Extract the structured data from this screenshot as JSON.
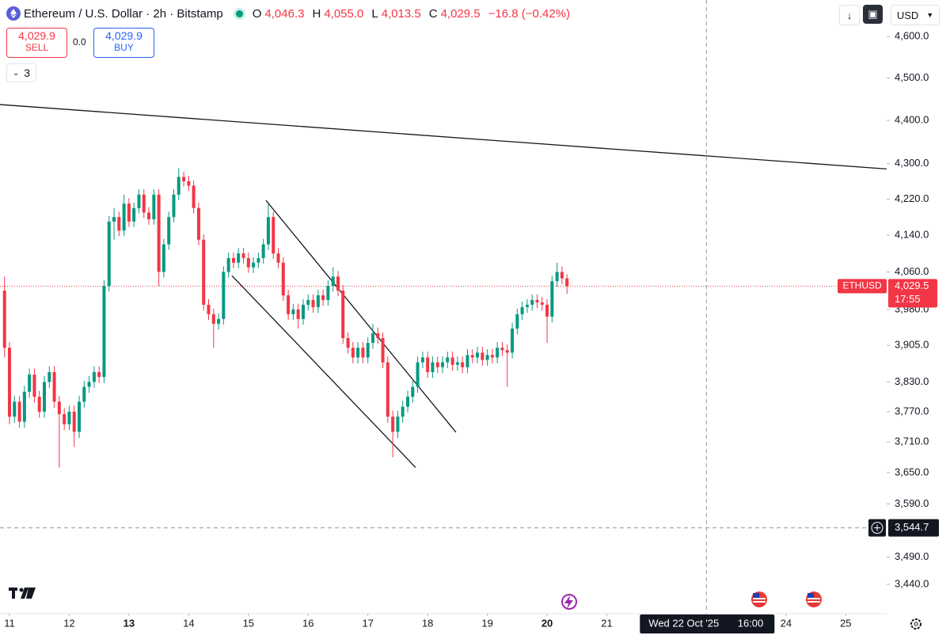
{
  "header": {
    "symbol": "Ethereum / U.S. Dollar · 2h · Bitstamp",
    "o_label": "O",
    "o": "4,046.3",
    "h_label": "H",
    "h": "4,055.0",
    "l_label": "L",
    "l": "4,013.5",
    "c_label": "C",
    "c": "4,029.5",
    "change": "−16.8 (−0.42%)"
  },
  "trade": {
    "sell_price": "4,029.9",
    "sell": "SELL",
    "spread": "0.0",
    "buy_price": "4,029.9",
    "buy": "BUY"
  },
  "indicators_count": "3",
  "currency": "USD",
  "chart_data": {
    "type": "candlestick",
    "log_scale": true,
    "up_color": "#089981",
    "down_color": "#f23645",
    "xlim": [
      10.841,
      25.685
    ],
    "xticks": [
      11,
      12,
      {
        "value": 13,
        "bold": true
      },
      14,
      15,
      16,
      17,
      18,
      19,
      {
        "value": 20,
        "bold": true
      },
      21,
      24,
      25
    ],
    "ylim": [
      3387,
      4690
    ],
    "yticks": [
      {
        "value": 4600,
        "label": "4,600.0"
      },
      {
        "value": 4500,
        "label": "4,500.0"
      },
      {
        "value": 4400,
        "label": "4,400.0"
      },
      {
        "value": 4300,
        "label": "4,300.0"
      },
      {
        "value": 4220,
        "label": "4,220.0"
      },
      {
        "value": 4140,
        "label": "4,140.0"
      },
      {
        "value": 4060,
        "label": "4,060.0"
      },
      {
        "value": 3980,
        "label": "3,980.0"
      },
      {
        "value": 3905,
        "label": "3,905.0"
      },
      {
        "value": 3830,
        "label": "3,830.0"
      },
      {
        "value": 3770,
        "label": "3,770.0"
      },
      {
        "value": 3710,
        "label": "3,710.0"
      },
      {
        "value": 3650,
        "label": "3,650.0"
      },
      {
        "value": 3590,
        "label": "3,590.0"
      },
      {
        "value": 3490,
        "label": "3,490.0"
      },
      {
        "value": 3440,
        "label": "3,440.0"
      }
    ],
    "x": [
      10.917,
      11.0,
      11.083,
      11.167,
      11.25,
      11.333,
      11.417,
      11.5,
      11.583,
      11.667,
      11.75,
      11.833,
      11.917,
      12.0,
      12.083,
      12.167,
      12.25,
      12.333,
      12.417,
      12.5,
      12.583,
      12.667,
      12.75,
      12.833,
      12.917,
      13.0,
      13.083,
      13.167,
      13.25,
      13.333,
      13.417,
      13.5,
      13.583,
      13.667,
      13.75,
      13.833,
      13.917,
      14.0,
      14.083,
      14.167,
      14.25,
      14.333,
      14.417,
      14.5,
      14.583,
      14.667,
      14.75,
      14.833,
      14.917,
      15.0,
      15.083,
      15.167,
      15.25,
      15.333,
      15.417,
      15.5,
      15.583,
      15.667,
      15.75,
      15.833,
      15.917,
      16.0,
      16.083,
      16.167,
      16.25,
      16.333,
      16.417,
      16.5,
      16.583,
      16.667,
      16.75,
      16.833,
      16.917,
      17.0,
      17.083,
      17.167,
      17.25,
      17.333,
      17.417,
      17.5,
      17.583,
      17.667,
      17.75,
      17.833,
      17.917,
      18.0,
      18.083,
      18.167,
      18.25,
      18.333,
      18.417,
      18.5,
      18.583,
      18.667,
      18.75,
      18.833,
      18.917,
      19.0,
      19.083,
      19.167,
      19.25,
      19.333,
      19.417,
      19.5,
      19.583,
      19.667,
      19.75,
      19.833,
      19.917,
      20.0,
      20.083,
      20.167,
      20.25,
      20.333
    ],
    "ohlc": [
      [
        4020,
        4050,
        3880,
        3900
      ],
      [
        3900,
        3912,
        3745,
        3760
      ],
      [
        3760,
        3802,
        3748,
        3790
      ],
      [
        3790,
        3802,
        3738,
        3750
      ],
      [
        3750,
        3822,
        3738,
        3810
      ],
      [
        3810,
        3857,
        3798,
        3845
      ],
      [
        3845,
        3857,
        3788,
        3800
      ],
      [
        3800,
        3812,
        3758,
        3770
      ],
      [
        3770,
        3842,
        3758,
        3830
      ],
      [
        3830,
        3862,
        3818,
        3850
      ],
      [
        3850,
        3862,
        3778,
        3790
      ],
      [
        3790,
        3802,
        3660,
        3765
      ],
      [
        3765,
        3777,
        3733,
        3745
      ],
      [
        3745,
        3782,
        3733,
        3770
      ],
      [
        3770,
        3782,
        3700,
        3730
      ],
      [
        3730,
        3802,
        3718,
        3790
      ],
      [
        3790,
        3832,
        3778,
        3820
      ],
      [
        3820,
        3842,
        3808,
        3830
      ],
      [
        3830,
        3862,
        3818,
        3850
      ],
      [
        3850,
        3862,
        3828,
        3840
      ],
      [
        3840,
        4042,
        3828,
        4030
      ],
      [
        4030,
        4182,
        4018,
        4170
      ],
      [
        4170,
        4200,
        4130,
        4180
      ],
      [
        4180,
        4192,
        4138,
        4150
      ],
      [
        4150,
        4230,
        4138,
        4210
      ],
      [
        4210,
        4222,
        4158,
        4170
      ],
      [
        4170,
        4212,
        4158,
        4200
      ],
      [
        4200,
        4242,
        4188,
        4230
      ],
      [
        4230,
        4242,
        4178,
        4190
      ],
      [
        4190,
        4202,
        4163,
        4175
      ],
      [
        4175,
        4242,
        4163,
        4230
      ],
      [
        4230,
        4242,
        4030,
        4060
      ],
      [
        4060,
        4132,
        4048,
        4120
      ],
      [
        4120,
        4192,
        4108,
        4180
      ],
      [
        4180,
        4242,
        4168,
        4230
      ],
      [
        4230,
        4290,
        4218,
        4270
      ],
      [
        4270,
        4282,
        4248,
        4260
      ],
      [
        4260,
        4272,
        4238,
        4250
      ],
      [
        4250,
        4262,
        4188,
        4200
      ],
      [
        4200,
        4212,
        4118,
        4130
      ],
      [
        4130,
        4142,
        3978,
        3990
      ],
      [
        3990,
        4002,
        3958,
        3970
      ],
      [
        3970,
        3982,
        3900,
        3950
      ],
      [
        3950,
        3972,
        3938,
        3960
      ],
      [
        3960,
        4072,
        3948,
        4060
      ],
      [
        4060,
        4102,
        4048,
        4090
      ],
      [
        4090,
        4102,
        4068,
        4080
      ],
      [
        4080,
        4112,
        4068,
        4100
      ],
      [
        4100,
        4112,
        4078,
        4090
      ],
      [
        4090,
        4102,
        4058,
        4070
      ],
      [
        4070,
        4092,
        4058,
        4080
      ],
      [
        4080,
        4102,
        4068,
        4090
      ],
      [
        4090,
        4132,
        4078,
        4120
      ],
      [
        4120,
        4210,
        4108,
        4180
      ],
      [
        4180,
        4192,
        4088,
        4100
      ],
      [
        4100,
        4112,
        4068,
        4080
      ],
      [
        4080,
        4092,
        3998,
        4010
      ],
      [
        4010,
        4022,
        3958,
        3970
      ],
      [
        3970,
        3992,
        3958,
        3980
      ],
      [
        3980,
        3992,
        3940,
        3960
      ],
      [
        3960,
        4002,
        3948,
        3990
      ],
      [
        3990,
        4012,
        3978,
        4000
      ],
      [
        4000,
        4012,
        3973,
        3985
      ],
      [
        3985,
        4022,
        3973,
        4010
      ],
      [
        4010,
        4022,
        3988,
        4000
      ],
      [
        4000,
        4042,
        3988,
        4030
      ],
      [
        4030,
        4070,
        4018,
        4050
      ],
      [
        4050,
        4062,
        4008,
        4020
      ],
      [
        4020,
        4032,
        3908,
        3920
      ],
      [
        3920,
        3932,
        3888,
        3900
      ],
      [
        3900,
        3912,
        3868,
        3880
      ],
      [
        3880,
        3912,
        3868,
        3900
      ],
      [
        3900,
        3912,
        3868,
        3880
      ],
      [
        3880,
        3922,
        3868,
        3910
      ],
      [
        3910,
        3950,
        3898,
        3930
      ],
      [
        3930,
        3942,
        3908,
        3920
      ],
      [
        3920,
        3932,
        3858,
        3870
      ],
      [
        3870,
        3882,
        3748,
        3760
      ],
      [
        3760,
        3772,
        3680,
        3730
      ],
      [
        3730,
        3772,
        3718,
        3760
      ],
      [
        3760,
        3792,
        3748,
        3780
      ],
      [
        3780,
        3812,
        3768,
        3800
      ],
      [
        3800,
        3832,
        3788,
        3820
      ],
      [
        3820,
        3882,
        3808,
        3870
      ],
      [
        3870,
        3892,
        3858,
        3880
      ],
      [
        3880,
        3892,
        3838,
        3850
      ],
      [
        3850,
        3882,
        3838,
        3870
      ],
      [
        3870,
        3882,
        3848,
        3860
      ],
      [
        3860,
        3882,
        3848,
        3870
      ],
      [
        3870,
        3892,
        3858,
        3880
      ],
      [
        3880,
        3892,
        3853,
        3865
      ],
      [
        3865,
        3882,
        3853,
        3870
      ],
      [
        3870,
        3882,
        3848,
        3860
      ],
      [
        3860,
        3897,
        3848,
        3885
      ],
      [
        3885,
        3897,
        3868,
        3880
      ],
      [
        3880,
        3902,
        3868,
        3890
      ],
      [
        3890,
        3902,
        3863,
        3875
      ],
      [
        3875,
        3897,
        3863,
        3885
      ],
      [
        3885,
        3897,
        3868,
        3880
      ],
      [
        3880,
        3912,
        3868,
        3900
      ],
      [
        3900,
        3912,
        3883,
        3895
      ],
      [
        3895,
        3907,
        3820,
        3890
      ],
      [
        3890,
        3952,
        3878,
        3940
      ],
      [
        3940,
        3982,
        3928,
        3970
      ],
      [
        3970,
        3997,
        3958,
        3985
      ],
      [
        3985,
        4002,
        3973,
        3990
      ],
      [
        3990,
        4012,
        3978,
        4000
      ],
      [
        4000,
        4012,
        3983,
        3995
      ],
      [
        3995,
        4007,
        3978,
        3990
      ],
      [
        3990,
        4002,
        3910,
        3965
      ],
      [
        3965,
        4052,
        3953,
        4040
      ],
      [
        4040,
        4080,
        4028,
        4060
      ],
      [
        4060,
        4072,
        4034,
        4046.3
      ],
      [
        4046.3,
        4055,
        4013.5,
        4029.5
      ]
    ],
    "trendlines": [
      {
        "x": [
          10.841,
          25.685
        ],
        "y": [
          4437,
          4288
        ]
      },
      {
        "x": [
          15.294,
          18.475
        ],
        "y": [
          4217,
          3729
        ]
      },
      {
        "x": [
          14.724,
          17.799
        ],
        "y": [
          4052,
          3660
        ]
      }
    ],
    "last_price": {
      "symbol": "ETHUSD",
      "value": 4029.5,
      "label": "4,029.5",
      "countdown": "17:55"
    },
    "crosshair": {
      "x": 22.667,
      "y": 3544.7,
      "y_label": "3,544.7",
      "date_label": "Wed 22 Oct '25",
      "time_label": "16:00"
    }
  }
}
